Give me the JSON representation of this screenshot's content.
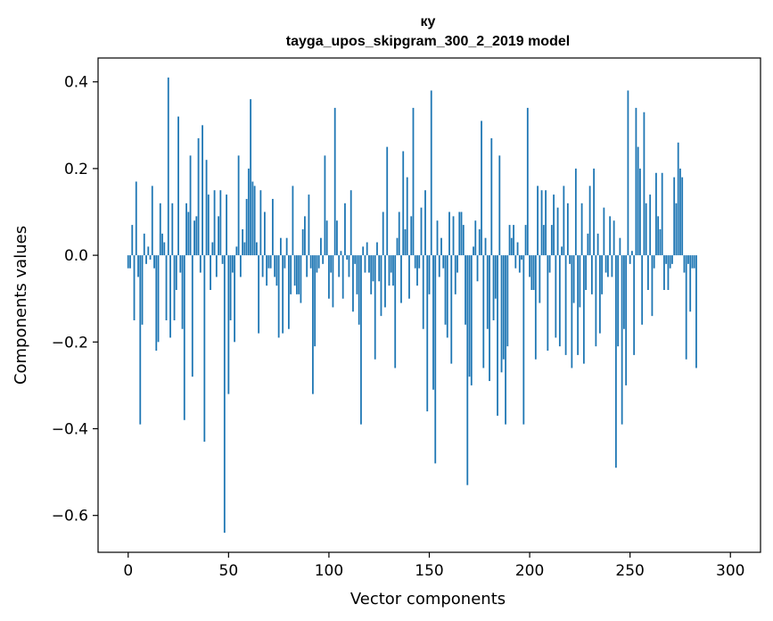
{
  "chart_data": {
    "type": "bar",
    "title_line1": "ку",
    "title_line2": "tayga_upos_skipgram_300_2_2019 model",
    "xlabel": "Vector components",
    "ylabel": "Components values",
    "xlim": [
      -15,
      315
    ],
    "ylim": [
      -0.685,
      0.455
    ],
    "xticks": [
      0,
      50,
      100,
      150,
      200,
      250,
      300
    ],
    "xtick_labels": [
      "0",
      "50",
      "100",
      "150",
      "200",
      "250",
      "300"
    ],
    "yticks": [
      0.4,
      0.2,
      0.0,
      -0.2,
      -0.4,
      -0.6
    ],
    "ytick_labels": [
      "0.4",
      "0.2",
      "0.0",
      "−0.2",
      "−0.4",
      "−0.6"
    ],
    "bar_color": "#1f77b4",
    "values": [
      -0.03,
      -0.03,
      0.07,
      -0.15,
      0.17,
      -0.05,
      -0.39,
      -0.16,
      0.05,
      -0.02,
      0.02,
      -0.01,
      0.16,
      -0.03,
      -0.22,
      -0.2,
      0.12,
      0.05,
      0.03,
      -0.15,
      0.41,
      -0.19,
      0.12,
      -0.15,
      -0.08,
      0.32,
      -0.04,
      -0.17,
      -0.38,
      0.12,
      0.1,
      0.23,
      -0.28,
      0.08,
      0.09,
      0.27,
      -0.04,
      0.3,
      -0.43,
      0.22,
      0.14,
      -0.08,
      0.03,
      0.15,
      -0.05,
      0.09,
      0.15,
      -0.02,
      -0.64,
      0.14,
      -0.32,
      -0.15,
      -0.04,
      -0.2,
      0.02,
      0.23,
      -0.05,
      0.06,
      0.03,
      0.13,
      0.2,
      0.36,
      0.17,
      0.16,
      0.03,
      -0.18,
      0.15,
      -0.05,
      0.1,
      -0.07,
      -0.03,
      -0.03,
      0.13,
      -0.05,
      -0.07,
      -0.19,
      0.04,
      -0.18,
      -0.03,
      0.04,
      -0.17,
      -0.09,
      0.16,
      -0.07,
      -0.09,
      -0.09,
      -0.11,
      0.06,
      0.09,
      -0.05,
      0.14,
      -0.03,
      -0.32,
      -0.21,
      -0.04,
      -0.03,
      0.04,
      -0.02,
      0.23,
      0.08,
      -0.1,
      -0.04,
      -0.12,
      0.34,
      0.08,
      -0.05,
      0.01,
      -0.1,
      0.12,
      -0.01,
      -0.05,
      0.15,
      -0.13,
      -0.02,
      -0.09,
      -0.16,
      -0.39,
      0.02,
      -0.04,
      0.03,
      -0.04,
      -0.09,
      -0.06,
      -0.24,
      0.03,
      -0.06,
      -0.14,
      0.1,
      -0.12,
      0.25,
      -0.07,
      -0.04,
      -0.07,
      -0.26,
      0.04,
      0.1,
      -0.11,
      0.24,
      0.06,
      0.18,
      -0.1,
      0.09,
      0.34,
      -0.03,
      -0.07,
      -0.03,
      0.11,
      -0.17,
      0.15,
      -0.36,
      -0.09,
      0.38,
      -0.31,
      -0.48,
      0.08,
      -0.05,
      0.04,
      -0.03,
      -0.16,
      -0.19,
      0.1,
      -0.25,
      0.09,
      -0.09,
      -0.04,
      0.1,
      0.1,
      0.07,
      -0.16,
      -0.53,
      -0.28,
      -0.3,
      0.02,
      0.08,
      -0.06,
      0.06,
      0.31,
      -0.26,
      0.04,
      -0.17,
      -0.29,
      0.27,
      -0.15,
      -0.1,
      -0.37,
      0.23,
      -0.27,
      -0.24,
      -0.39,
      -0.21,
      0.07,
      0.04,
      0.07,
      -0.03,
      0.03,
      -0.04,
      -0.01,
      -0.39,
      0.07,
      0.34,
      -0.05,
      -0.08,
      -0.08,
      -0.24,
      0.16,
      -0.11,
      0.15,
      0.07,
      0.15,
      -0.22,
      -0.04,
      0.07,
      0.14,
      -0.19,
      0.11,
      -0.21,
      0.02,
      0.16,
      -0.23,
      0.12,
      -0.02,
      -0.26,
      -0.11,
      0.2,
      -0.23,
      -0.12,
      0.12,
      -0.25,
      -0.08,
      0.05,
      0.16,
      -0.09,
      0.2,
      -0.21,
      0.05,
      -0.18,
      -0.09,
      0.11,
      -0.04,
      -0.05,
      0.09,
      -0.05,
      0.08,
      -0.49,
      -0.21,
      0.04,
      -0.39,
      -0.17,
      -0.3,
      0.38,
      -0.02,
      0.01,
      -0.23,
      0.34,
      0.25,
      0.2,
      -0.16,
      0.33,
      0.12,
      -0.08,
      0.14,
      -0.14,
      -0.03,
      0.19,
      0.09,
      0.06,
      0.19,
      -0.08,
      -0.02,
      -0.08,
      -0.03,
      -0.02,
      0.18,
      0.12,
      0.26,
      0.2,
      0.18,
      -0.04,
      -0.24,
      -0.02,
      -0.13,
      -0.03,
      -0.03,
      -0.26
    ]
  }
}
